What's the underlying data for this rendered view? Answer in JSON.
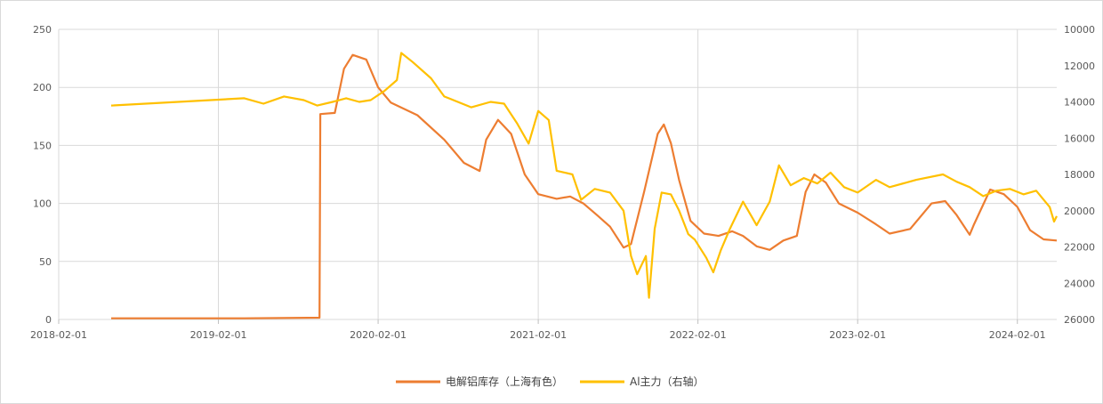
{
  "chart_data": {
    "type": "line",
    "x_ticks": [
      "2018-02-01",
      "2019-02-01",
      "2020-02-01",
      "2021-02-01",
      "2022-02-01",
      "2023-02-01",
      "2024-02-01"
    ],
    "x_range": [
      "2018-02-01",
      "2024-05-01"
    ],
    "y_left": {
      "ticks": [
        "250",
        "200",
        "150",
        "100",
        "50",
        "0"
      ],
      "range": [
        0,
        250
      ]
    },
    "y_right": {
      "ticks": [
        "10000",
        "12000",
        "14000",
        "16000",
        "18000",
        "20000",
        "22000",
        "24000",
        "26000"
      ],
      "range": [
        10000,
        26000
      ],
      "reversed": true
    },
    "grid": true,
    "legend_position": "bottom",
    "series": [
      {
        "name": "电解铝库存（上海有色）",
        "axis": "left",
        "color": "#ED7D31",
        "points": [
          [
            "2018-06-01",
            1
          ],
          [
            "2019-04-01",
            1
          ],
          [
            "2019-09-20",
            1.5
          ],
          [
            "2019-09-22",
            177
          ],
          [
            "2019-10-25",
            178
          ],
          [
            "2019-11-15",
            216
          ],
          [
            "2019-12-05",
            228
          ],
          [
            "2020-01-05",
            224
          ],
          [
            "2020-02-01",
            200
          ],
          [
            "2020-03-01",
            187
          ],
          [
            "2020-05-01",
            176
          ],
          [
            "2020-07-01",
            155
          ],
          [
            "2020-08-15",
            135
          ],
          [
            "2020-09-20",
            128
          ],
          [
            "2020-10-05",
            155
          ],
          [
            "2020-11-01",
            172
          ],
          [
            "2020-12-01",
            160
          ],
          [
            "2021-01-01",
            125
          ],
          [
            "2021-02-01",
            108
          ],
          [
            "2021-03-15",
            104
          ],
          [
            "2021-04-15",
            106
          ],
          [
            "2021-05-15",
            100
          ],
          [
            "2021-06-15",
            90
          ],
          [
            "2021-07-15",
            80
          ],
          [
            "2021-08-15",
            62
          ],
          [
            "2021-09-01",
            65
          ],
          [
            "2021-10-01",
            110
          ],
          [
            "2021-11-01",
            160
          ],
          [
            "2021-11-15",
            168
          ],
          [
            "2021-12-01",
            152
          ],
          [
            "2021-12-20",
            120
          ],
          [
            "2022-01-15",
            85
          ],
          [
            "2022-02-15",
            74
          ],
          [
            "2022-03-20",
            72
          ],
          [
            "2022-04-20",
            76
          ],
          [
            "2022-05-15",
            72
          ],
          [
            "2022-06-15",
            63
          ],
          [
            "2022-07-15",
            60
          ],
          [
            "2022-08-15",
            68
          ],
          [
            "2022-09-15",
            72
          ],
          [
            "2022-10-05",
            110
          ],
          [
            "2022-10-25",
            125
          ],
          [
            "2022-11-20",
            118
          ],
          [
            "2022-12-20",
            100
          ],
          [
            "2023-02-01",
            92
          ],
          [
            "2023-03-15",
            82
          ],
          [
            "2023-04-15",
            74
          ],
          [
            "2023-06-01",
            78
          ],
          [
            "2023-07-20",
            100
          ],
          [
            "2023-08-20",
            102
          ],
          [
            "2023-09-15",
            90
          ],
          [
            "2023-10-15",
            73
          ],
          [
            "2023-10-25",
            82
          ],
          [
            "2023-12-01",
            112
          ],
          [
            "2024-01-01",
            108
          ],
          [
            "2024-02-01",
            97
          ],
          [
            "2024-03-01",
            77
          ],
          [
            "2024-04-01",
            69
          ],
          [
            "2024-05-01",
            68
          ]
        ]
      },
      {
        "name": "Al主力（右轴）",
        "axis": "right",
        "color": "#FFC000",
        "points": [
          [
            "2018-06-01",
            14200
          ],
          [
            "2019-04-01",
            13800
          ],
          [
            "2019-05-15",
            14100
          ],
          [
            "2019-07-01",
            13700
          ],
          [
            "2019-08-15",
            13900
          ],
          [
            "2019-09-15",
            14200
          ],
          [
            "2019-10-20",
            14000
          ],
          [
            "2019-11-20",
            13800
          ],
          [
            "2019-12-20",
            14000
          ],
          [
            "2020-01-15",
            13900
          ],
          [
            "2020-02-15",
            13400
          ],
          [
            "2020-03-15",
            12800
          ],
          [
            "2020-03-25",
            11300
          ],
          [
            "2020-04-20",
            11800
          ],
          [
            "2020-06-01",
            12700
          ],
          [
            "2020-07-01",
            13700
          ],
          [
            "2020-09-01",
            14300
          ],
          [
            "2020-10-15",
            14000
          ],
          [
            "2020-11-15",
            14100
          ],
          [
            "2020-12-15",
            15200
          ],
          [
            "2021-01-10",
            16300
          ],
          [
            "2021-02-01",
            14500
          ],
          [
            "2021-02-25",
            15000
          ],
          [
            "2021-03-15",
            17800
          ],
          [
            "2021-04-20",
            18000
          ],
          [
            "2021-05-10",
            19400
          ],
          [
            "2021-06-10",
            18800
          ],
          [
            "2021-07-15",
            19000
          ],
          [
            "2021-08-15",
            20000
          ],
          [
            "2021-09-01",
            22500
          ],
          [
            "2021-09-15",
            23500
          ],
          [
            "2021-10-05",
            22500
          ],
          [
            "2021-10-12",
            24800
          ],
          [
            "2021-10-25",
            21000
          ],
          [
            "2021-11-10",
            19000
          ],
          [
            "2021-12-01",
            19100
          ],
          [
            "2021-12-20",
            20000
          ],
          [
            "2022-01-10",
            21300
          ],
          [
            "2022-01-25",
            21600
          ],
          [
            "2022-02-20",
            22600
          ],
          [
            "2022-03-08",
            23400
          ],
          [
            "2022-03-25",
            22200
          ],
          [
            "2022-04-15",
            21000
          ],
          [
            "2022-05-15",
            19500
          ],
          [
            "2022-06-15",
            20800
          ],
          [
            "2022-07-15",
            19500
          ],
          [
            "2022-08-05",
            17500
          ],
          [
            "2022-09-01",
            18600
          ],
          [
            "2022-10-01",
            18200
          ],
          [
            "2022-11-01",
            18500
          ],
          [
            "2022-12-01",
            17900
          ],
          [
            "2023-01-01",
            18700
          ],
          [
            "2023-02-01",
            19000
          ],
          [
            "2023-03-15",
            18300
          ],
          [
            "2023-04-15",
            18700
          ],
          [
            "2023-06-15",
            18300
          ],
          [
            "2023-08-15",
            18000
          ],
          [
            "2023-09-15",
            18400
          ],
          [
            "2023-10-15",
            18700
          ],
          [
            "2023-11-15",
            19200
          ],
          [
            "2023-12-15",
            18900
          ],
          [
            "2024-01-15",
            18800
          ],
          [
            "2024-02-15",
            19100
          ],
          [
            "2024-03-15",
            18900
          ],
          [
            "2024-04-15",
            19800
          ],
          [
            "2024-04-25",
            20600
          ],
          [
            "2024-05-01",
            20300
          ]
        ]
      }
    ]
  }
}
